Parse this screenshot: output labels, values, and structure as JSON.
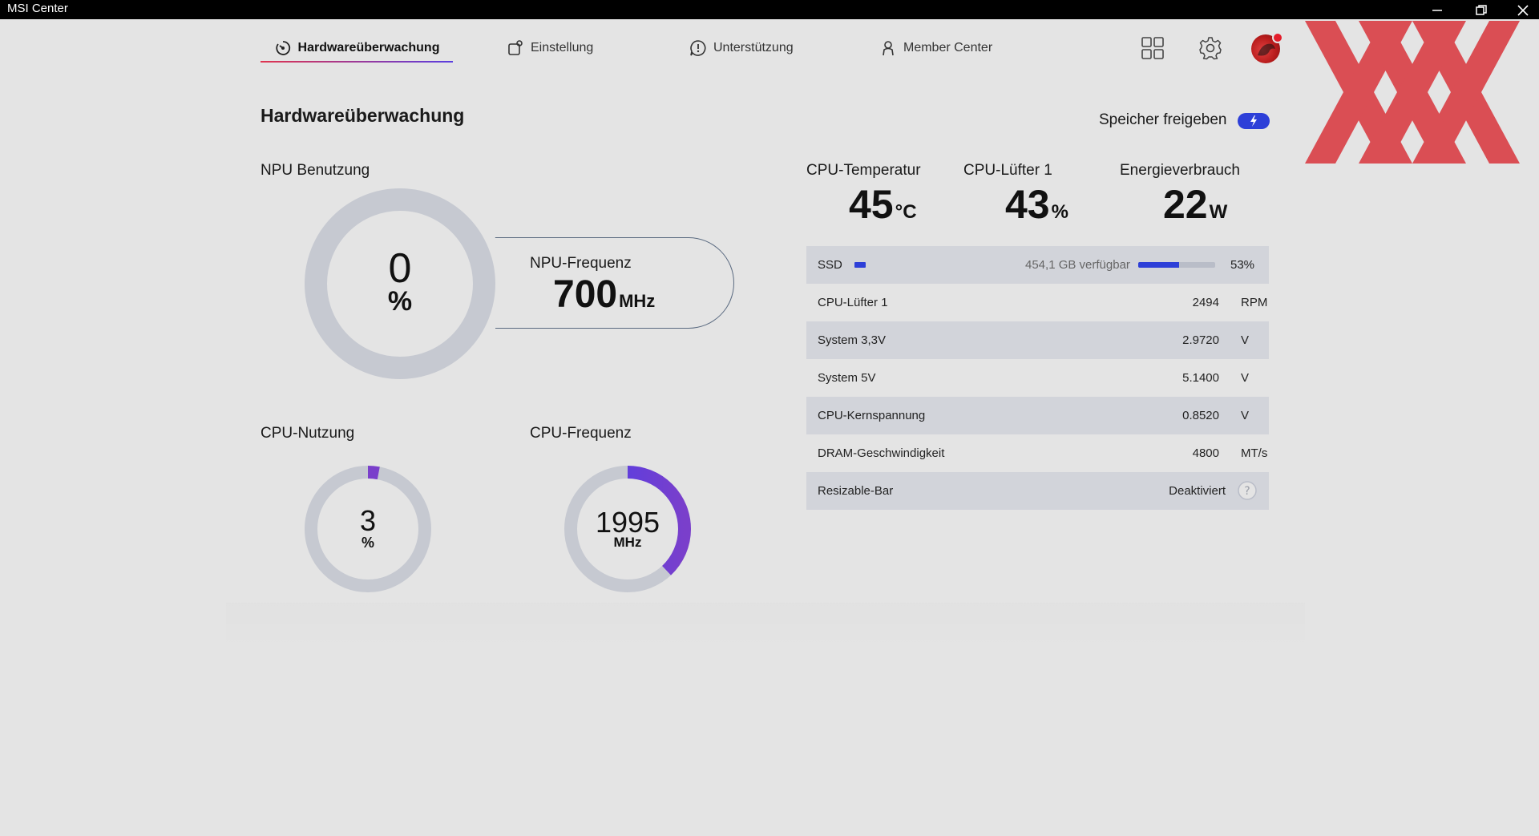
{
  "window": {
    "title": "MSI Center"
  },
  "nav": {
    "tabs": [
      {
        "label": "Hardwareüberwachung",
        "icon": "dashboard-icon"
      },
      {
        "label": "Einstellung",
        "icon": "settings-window-icon"
      },
      {
        "label": "Unterstützung",
        "icon": "support-icon"
      },
      {
        "label": "Member Center",
        "icon": "user-icon"
      }
    ],
    "icons": [
      "grid-icon",
      "gear-icon",
      "avatar"
    ]
  },
  "page": {
    "title": "Hardwareüberwachung",
    "free_memory_label": "Speicher freigeben"
  },
  "npu": {
    "label": "NPU Benutzung",
    "usage_value": "0",
    "usage_unit": "%",
    "usage_fraction": 0,
    "freq_label": "NPU-Frequenz",
    "freq_value": "700",
    "freq_unit": "MHz"
  },
  "cpu_usage": {
    "label": "CPU-Nutzung",
    "value": "3",
    "unit": "%",
    "fraction": 0.03
  },
  "cpu_freq": {
    "label": "CPU-Frequenz",
    "value": "1995",
    "unit": "MHz",
    "fraction": 0.38
  },
  "metrics": [
    {
      "label": "CPU-Temperatur",
      "value": "45",
      "unit": "°C"
    },
    {
      "label": "CPU-Lüfter 1",
      "value": "43",
      "unit": "%"
    },
    {
      "label": "Energieverbrauch",
      "value": "22",
      "unit": "W"
    }
  ],
  "ssd": {
    "label": "SSD",
    "free": "454,1 GB verfügbar",
    "percent": "53%",
    "fraction": 0.53
  },
  "stats": [
    {
      "label": "CPU-Lüfter 1",
      "value": "2494",
      "unit": "RPM"
    },
    {
      "label": "System 3,3V",
      "value": "2.9720",
      "unit": "V"
    },
    {
      "label": "System 5V",
      "value": "5.1400",
      "unit": "V"
    },
    {
      "label": "CPU-Kernspannung",
      "value": "0.8520",
      "unit": "V"
    },
    {
      "label": "DRAM-Geschwindigkeit",
      "value": "4800",
      "unit": "MT/s"
    }
  ],
  "resizable_bar": {
    "label": "Resizable-Bar",
    "value": "Deaktiviert",
    "help": "?"
  },
  "colors": {
    "accent": "#2d3fd8",
    "gauge_track": "#c6c9d1",
    "gauge_start": "#e0354f",
    "gauge_end": "#5a3ee0",
    "purple": "#7a3fcb"
  }
}
